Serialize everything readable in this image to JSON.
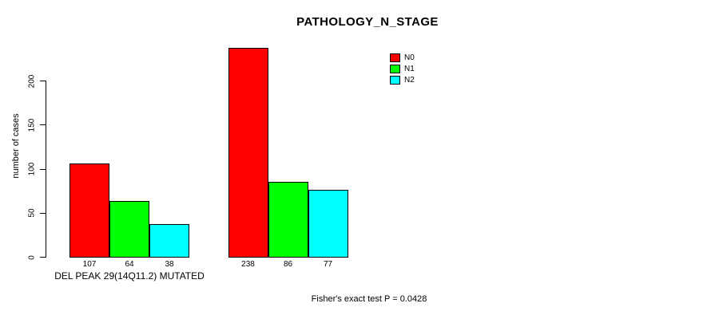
{
  "chart_data": {
    "type": "bar",
    "title": "PATHOLOGY_N_STAGE",
    "ylabel": "number of cases",
    "yticks": [
      0,
      50,
      100,
      150,
      200
    ],
    "ylim": [
      0,
      240
    ],
    "grid": false,
    "legend_position": "top-right",
    "series": [
      "N0",
      "N1",
      "N2"
    ],
    "colors": [
      "#ff0000",
      "#00ff00",
      "#00ffff"
    ],
    "groups": [
      {
        "label": "DEL PEAK 29(14Q11.2) MUTATED",
        "values": [
          107,
          64,
          38
        ]
      },
      {
        "label": "",
        "values": [
          238,
          86,
          77
        ]
      }
    ],
    "annotation": "Fisher's exact test P = 0.0428"
  }
}
